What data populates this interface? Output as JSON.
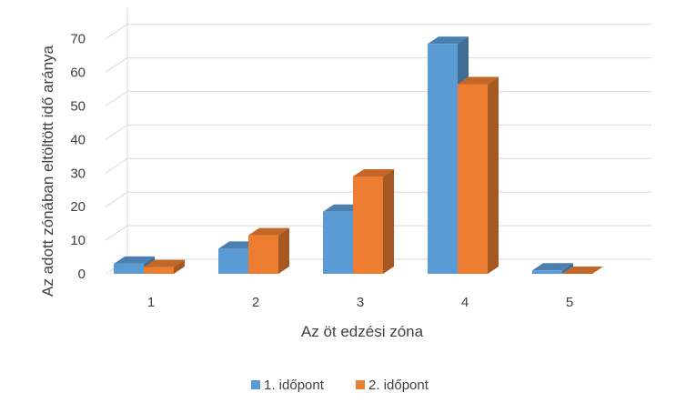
{
  "chart_data": {
    "type": "bar",
    "title": "",
    "xlabel": "Az öt edzési zóna",
    "ylabel": "Az adott zónában eltöltött idő aránya",
    "categories": [
      "1",
      "2",
      "3",
      "4",
      "5"
    ],
    "series": [
      {
        "name": "1. időpont",
        "values": [
          3,
          7.5,
          18.5,
          68.5,
          1
        ],
        "color": "#5b9bd5"
      },
      {
        "name": "2. időpont",
        "values": [
          2,
          11.5,
          29,
          56.5,
          0
        ],
        "color": "#ed7d31"
      }
    ],
    "yticks": [
      "0",
      "10",
      "20",
      "30",
      "40",
      "50",
      "60",
      "70"
    ],
    "ylim": [
      0,
      75
    ],
    "grid": true,
    "legend_position": "bottom",
    "style": "3d-clustered-column"
  }
}
